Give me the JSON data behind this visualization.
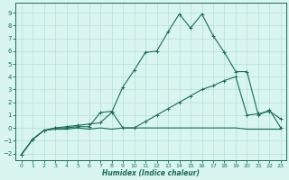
{
  "xlabel": "Humidex (Indice chaleur)",
  "x_values": [
    0,
    1,
    2,
    3,
    4,
    5,
    6,
    7,
    8,
    9,
    10,
    11,
    12,
    13,
    14,
    15,
    16,
    17,
    18,
    19,
    20,
    21,
    22,
    23
  ],
  "line1_y": [
    -2.1,
    -0.9,
    -0.2,
    -0.1,
    -0.1,
    0.0,
    -0.1,
    0.0,
    -0.1,
    0.0,
    0.0,
    0.0,
    0.0,
    0.0,
    0.0,
    0.0,
    0.0,
    0.0,
    0.0,
    0.0,
    -0.1,
    -0.1,
    -0.1,
    -0.1
  ],
  "line2_y": [
    -2.1,
    -0.9,
    -0.2,
    -0.0,
    0.0,
    0.1,
    0.1,
    1.2,
    1.3,
    0.0,
    0.0,
    0.5,
    1.0,
    1.5,
    2.0,
    2.5,
    3.0,
    3.3,
    3.7,
    4.0,
    1.0,
    1.1,
    1.3,
    0.7
  ],
  "line3_y": [
    -2.1,
    -0.9,
    -0.2,
    0.0,
    0.1,
    0.2,
    0.3,
    0.4,
    1.2,
    3.2,
    4.5,
    5.9,
    6.0,
    7.5,
    8.9,
    7.8,
    8.9,
    7.2,
    5.9,
    4.4,
    4.4,
    1.0,
    1.4,
    0.0
  ],
  "line_color": "#1a6b5a",
  "bg_color": "#d8f5f0",
  "grid_color": "#b8ddd8",
  "ylim": [
    -2.5,
    9.8
  ],
  "xlim": [
    -0.5,
    23.5
  ],
  "yticks": [
    -2,
    -1,
    0,
    1,
    2,
    3,
    4,
    5,
    6,
    7,
    8,
    9
  ],
  "xticks": [
    0,
    1,
    2,
    3,
    4,
    5,
    6,
    7,
    8,
    9,
    10,
    11,
    12,
    13,
    14,
    15,
    16,
    17,
    18,
    19,
    20,
    21,
    22,
    23
  ]
}
